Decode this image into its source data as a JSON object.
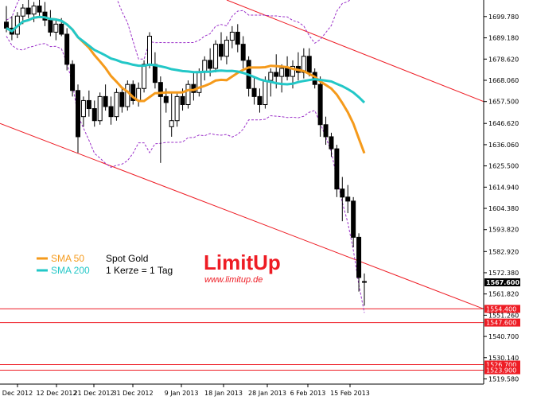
{
  "chart_data": {
    "type": "candlestick",
    "legend": [
      {
        "label": "SMA 50",
        "color": "#f59a1b"
      },
      {
        "label": "SMA 200",
        "color": "#22c7c7"
      }
    ],
    "info": [
      "Spot Gold",
      "1 Kerze = 1 Tag"
    ],
    "logo": {
      "text": "LimitUp",
      "url": "www.limitup.de",
      "color": "#ee1c24"
    },
    "y_ticks": [
      "1699.780",
      "1689.180",
      "1678.620",
      "1668.060",
      "1657.500",
      "1646.620",
      "1636.060",
      "1625.500",
      "1614.940",
      "1604.380",
      "1593.820",
      "1582.920",
      "1572.380",
      "1561.820",
      "1551.260",
      "1540.700",
      "1530.140",
      "1519.580"
    ],
    "x_ticks": [
      "Dec 2012",
      "12 Dec 2012",
      "21 Dec 2012",
      "31 Dec 2012",
      "9 Jan 2013",
      "18 Jan 2013",
      "28 Jan 2013",
      "6 Feb 2013",
      "15 Feb 2013"
    ],
    "ylim": [
      1517.0,
      1708.0
    ],
    "current_price": "1567.600",
    "levels": [
      {
        "value": "1554.400",
        "price": 1554.4
      },
      {
        "value": "1547.600",
        "price": 1547.6
      },
      {
        "value": "1526.700",
        "price": 1526.7
      },
      {
        "value": "1523.900",
        "price": 1523.9
      }
    ],
    "candles": [
      [
        1697,
        1705,
        1692,
        1694
      ],
      [
        1694,
        1700,
        1688,
        1691
      ],
      [
        1691,
        1702,
        1689,
        1700
      ],
      [
        1700,
        1706,
        1696,
        1704
      ],
      [
        1704,
        1708,
        1699,
        1701
      ],
      [
        1701,
        1707,
        1697,
        1705
      ],
      [
        1705,
        1708,
        1700,
        1702
      ],
      [
        1702,
        1707,
        1695,
        1698
      ],
      [
        1698,
        1703,
        1690,
        1692
      ],
      [
        1692,
        1698,
        1688,
        1696
      ],
      [
        1696,
        1699,
        1690,
        1691
      ],
      [
        1691,
        1694,
        1673,
        1676
      ],
      [
        1676,
        1678,
        1660,
        1663
      ],
      [
        1663,
        1666,
        1632,
        1640
      ],
      [
        1650,
        1660,
        1645,
        1658
      ],
      [
        1658,
        1663,
        1650,
        1654
      ],
      [
        1654,
        1658,
        1645,
        1648
      ],
      [
        1648,
        1662,
        1646,
        1660
      ],
      [
        1660,
        1666,
        1653,
        1655
      ],
      [
        1655,
        1660,
        1646,
        1650
      ],
      [
        1650,
        1664,
        1648,
        1662
      ],
      [
        1662,
        1665,
        1652,
        1655
      ],
      [
        1655,
        1668,
        1653,
        1666
      ],
      [
        1666,
        1668,
        1656,
        1658
      ],
      [
        1658,
        1667,
        1655,
        1664
      ],
      [
        1664,
        1678,
        1662,
        1676
      ],
      [
        1676,
        1692,
        1674,
        1690
      ],
      [
        1676,
        1682,
        1664,
        1667
      ],
      [
        1667,
        1670,
        1627,
        1660
      ],
      [
        1660,
        1664,
        1652,
        1657
      ],
      [
        1645,
        1662,
        1640,
        1648
      ],
      [
        1648,
        1662,
        1645,
        1660
      ],
      [
        1660,
        1664,
        1653,
        1656
      ],
      [
        1656,
        1668,
        1654,
        1666
      ],
      [
        1666,
        1672,
        1658,
        1662
      ],
      [
        1662,
        1674,
        1660,
        1672
      ],
      [
        1672,
        1680,
        1668,
        1678
      ],
      [
        1678,
        1684,
        1670,
        1674
      ],
      [
        1674,
        1688,
        1672,
        1686
      ],
      [
        1686,
        1692,
        1678,
        1680
      ],
      [
        1680,
        1690,
        1676,
        1688
      ],
      [
        1688,
        1695,
        1684,
        1692
      ],
      [
        1692,
        1696,
        1682,
        1686
      ],
      [
        1686,
        1690,
        1674,
        1678
      ],
      [
        1678,
        1680,
        1660,
        1664
      ],
      [
        1664,
        1670,
        1656,
        1660
      ],
      [
        1660,
        1664,
        1652,
        1656
      ],
      [
        1656,
        1670,
        1654,
        1668
      ],
      [
        1668,
        1674,
        1660,
        1672
      ],
      [
        1672,
        1681,
        1664,
        1670
      ],
      [
        1670,
        1676,
        1662,
        1674
      ],
      [
        1674,
        1680,
        1668,
        1670
      ],
      [
        1670,
        1678,
        1664,
        1675
      ],
      [
        1675,
        1682,
        1668,
        1672
      ],
      [
        1672,
        1684,
        1669,
        1680
      ],
      [
        1680,
        1684,
        1670,
        1672
      ],
      [
        1672,
        1674,
        1664,
        1666
      ],
      [
        1666,
        1670,
        1640,
        1646
      ],
      [
        1646,
        1650,
        1636,
        1640
      ],
      [
        1640,
        1642,
        1630,
        1634
      ],
      [
        1634,
        1636,
        1610,
        1614
      ],
      [
        1614,
        1620,
        1598,
        1610
      ],
      [
        1610,
        1616,
        1602,
        1608
      ],
      [
        1608,
        1610,
        1585,
        1590
      ],
      [
        1590,
        1592,
        1563,
        1570
      ],
      [
        1568,
        1572,
        1556,
        1568
      ]
    ]
  }
}
